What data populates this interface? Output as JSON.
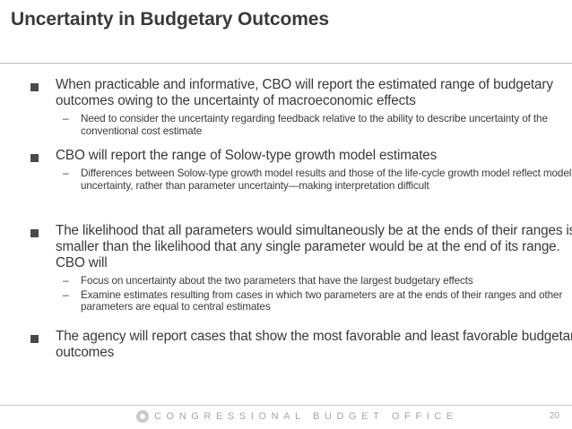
{
  "slide": {
    "title": "Uncertainty in Budgetary Outcomes",
    "bullets": [
      {
        "text": "When practicable and informative, CBO will report the estimated range of budgetary outcomes owing to the uncertainty of macroeconomic effects",
        "subs": [
          "Need to consider the uncertainty regarding feedback relative to the ability to describe uncertainty of the conventional cost estimate"
        ]
      },
      {
        "text": "CBO will report the range of Solow-type growth model estimates",
        "subs": [
          "Differences between Solow-type growth model results and those of the life-cycle growth model reflect model uncertainty, rather than parameter uncertainty—making interpretation difficult"
        ]
      },
      {
        "text": "The likelihood that all parameters would simultaneously be at the ends of their ranges is smaller than the likelihood that any single parameter would be at the end of its range. CBO will",
        "subs": [
          "Focus on uncertainty about the two parameters that have the largest budgetary effects",
          "Examine estimates resulting from cases in which two parameters are at the ends of their ranges and other parameters are equal to central estimates"
        ]
      },
      {
        "text": "The agency will report cases that show the most favorable and least favorable budgetary outcomes",
        "subs": []
      }
    ]
  },
  "footer": {
    "organization": "CONGRESSIONAL BUDGET OFFICE",
    "page_number": "20",
    "logo_icon": "cbo-logo-icon"
  },
  "colors": {
    "text": "#3a3a3a",
    "footer_text": "#a6a6a6",
    "rule": "#b8b8b8"
  }
}
